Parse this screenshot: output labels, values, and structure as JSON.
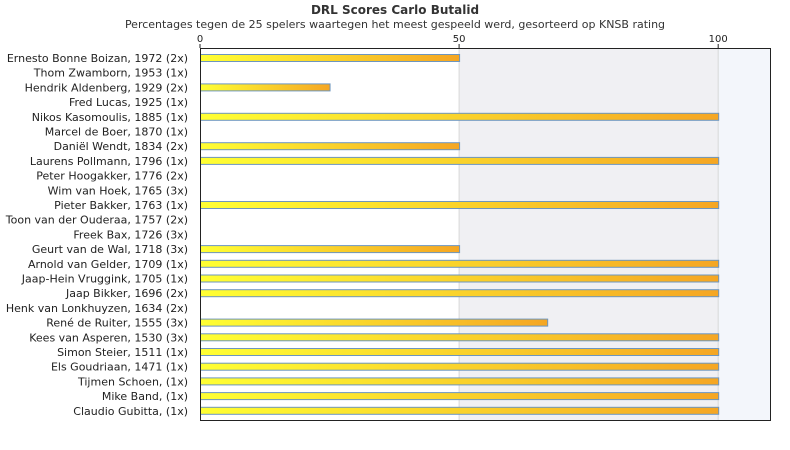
{
  "title": "DRL Scores Carlo Butalid",
  "subtitle": "Percentages tegen de 25 spelers waartegen het meest gespeeld werd, gesorteerd op KNSB rating",
  "colors": {
    "bar_start": "#ffff33",
    "bar_end": "#f5a623",
    "bar_border": "#6d96bf",
    "band": "#f0f0f3",
    "band_right": "#f3f6fb",
    "grid": "#d8d8d8"
  },
  "chart_data": {
    "type": "bar",
    "orientation": "horizontal",
    "title": "DRL Scores Carlo Butalid",
    "subtitle": "Percentages tegen de 25 spelers waartegen het meest gespeeld werd, gesorteerd op KNSB rating",
    "xlim": [
      0,
      110
    ],
    "xticks": [
      0,
      50,
      100
    ],
    "categories": [
      "Ernesto Bonne Boizan, 1972 (2x)",
      "Thom Zwamborn, 1953 (1x)",
      "Hendrik Aldenberg, 1929 (2x)",
      "Fred Lucas, 1925 (1x)",
      "Nikos Kasomoulis, 1885 (1x)",
      "Marcel de Boer, 1870 (1x)",
      "Daniël Wendt, 1834 (2x)",
      "Laurens Pollmann, 1796 (1x)",
      "Peter Hoogakker, 1776 (2x)",
      "Wim van Hoek, 1765 (3x)",
      "Pieter Bakker, 1763 (1x)",
      "Toon van der Ouderaa, 1757 (2x)",
      "Freek Bax, 1726 (3x)",
      "Geurt van de Wal, 1718 (3x)",
      "Arnold van Gelder, 1709 (1x)",
      "Jaap-Hein Vruggink, 1705 (1x)",
      "Jaap Bikker, 1696 (2x)",
      "Henk van Lonkhuyzen, 1634 (2x)",
      "René de Ruiter, 1555 (3x)",
      "Kees van Asperen, 1530 (3x)",
      "Simon Steier, 1511 (1x)",
      "Els Goudriaan, 1471 (1x)",
      "Tijmen Schoen,  (1x)",
      "Mike Band,  (1x)",
      "Claudio Gubitta,  (1x)"
    ],
    "values": [
      50,
      0,
      25,
      0,
      100,
      0,
      50,
      100,
      0,
      0,
      100,
      0,
      0,
      50,
      100,
      100,
      100,
      0,
      67,
      100,
      100,
      100,
      100,
      100,
      100
    ],
    "grid": true,
    "legend": "none"
  }
}
